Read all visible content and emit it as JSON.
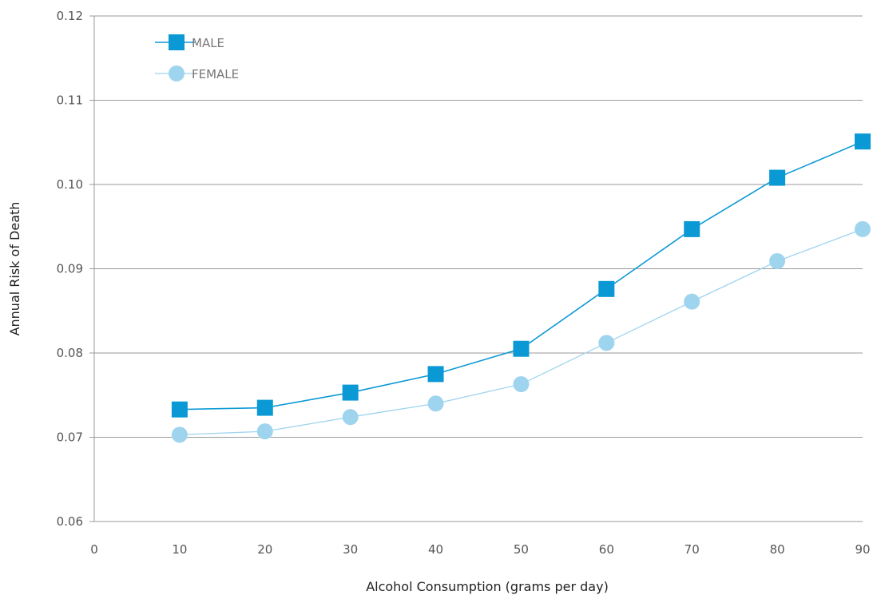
{
  "chart_data": {
    "type": "line",
    "title": "",
    "xlabel": "Alcohol Consumption (grams per day)",
    "ylabel": "Annual Risk of Death",
    "x": [
      10,
      20,
      30,
      40,
      50,
      60,
      70,
      80,
      90
    ],
    "xlim": [
      0,
      90
    ],
    "xticks": [
      "0",
      "10",
      "20",
      "30",
      "40",
      "50",
      "60",
      "70",
      "80",
      "90"
    ],
    "ylim": [
      0.06,
      0.12
    ],
    "yticks": [
      "0.06",
      "0.07",
      "0.08",
      "0.09",
      "0.10",
      "0.11",
      "0.12"
    ],
    "grid": "horizontal",
    "legend_position": "top-left",
    "series": [
      {
        "name": "MALE",
        "marker": "square",
        "color": "#0b99d5",
        "values": [
          0.0733,
          0.0735,
          0.0753,
          0.0775,
          0.0805,
          0.0876,
          0.0947,
          0.1008,
          0.1051
        ]
      },
      {
        "name": "FEMALE",
        "marker": "circle",
        "color": "#9fd4ef",
        "values": [
          0.0703,
          0.0707,
          0.0724,
          0.074,
          0.0763,
          0.0812,
          0.0861,
          0.0909,
          0.0947
        ]
      }
    ]
  }
}
